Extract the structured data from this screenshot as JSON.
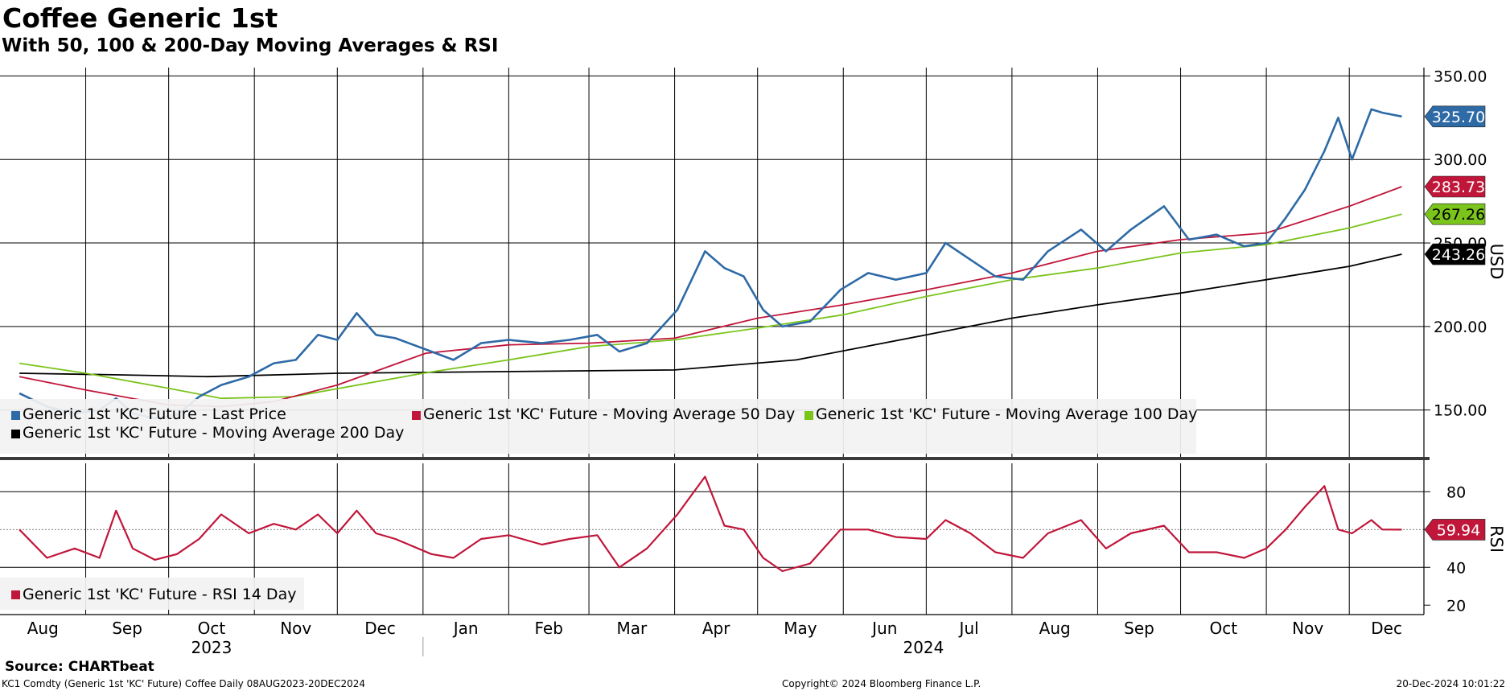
{
  "header": {
    "title": "Coffee Generic 1st",
    "subtitle": "With 50, 100 & 200-Day Moving Averages & RSI"
  },
  "footer": {
    "source": "Source: CHARTbeat",
    "security": "KC1 Comdty (Generic 1st 'KC' Future) Coffee  Daily 08AUG2023-20DEC2024",
    "copyright": "Copyright© 2024 Bloomberg Finance L.P.",
    "timestamp": "20-Dec-2024 10:01:22"
  },
  "colors": {
    "last_price": "#2e6aa6",
    "ma50": "#c0163a",
    "ma100": "#7ac41c",
    "ma200": "#000000",
    "rsi": "#c0163a"
  },
  "chart_data": [
    {
      "type": "line",
      "panel": "price",
      "title": "Coffee Generic 1st",
      "subtitle": "With 50, 100 & 200-Day Moving Averages & RSI",
      "ylabel": "USD",
      "ylim": [
        120,
        355
      ],
      "y_ticks": [
        "150.00",
        "200.00",
        "250.00",
        "300.00",
        "350.00"
      ],
      "x_range": [
        "2023-08-08",
        "2024-12-20"
      ],
      "x_tick_labels": [
        "Aug",
        "Sep",
        "Oct",
        "Nov",
        "Dec",
        "Jan",
        "Feb",
        "Mar",
        "Apr",
        "May",
        "Jun",
        "Jul",
        "Aug",
        "Sep",
        "Oct",
        "Nov",
        "Dec"
      ],
      "year_labels": [
        "2023",
        "2024"
      ],
      "grid": true,
      "legend_position": "bottom-left",
      "series": [
        {
          "name": "Generic 1st 'KC' Future - Last Price",
          "color": "#2e6aa6",
          "last_label": "325.70",
          "points": [
            [
              "2023-08-08",
              160
            ],
            [
              "2023-08-18",
              152
            ],
            [
              "2023-08-28",
              148
            ],
            [
              "2023-09-06",
              150
            ],
            [
              "2023-09-12",
              157
            ],
            [
              "2023-09-18",
              148
            ],
            [
              "2023-09-26",
              145
            ],
            [
              "2023-10-04",
              147
            ],
            [
              "2023-10-12",
              158
            ],
            [
              "2023-10-20",
              165
            ],
            [
              "2023-10-30",
              170
            ],
            [
              "2023-11-08",
              178
            ],
            [
              "2023-11-16",
              180
            ],
            [
              "2023-11-24",
              195
            ],
            [
              "2023-12-01",
              192
            ],
            [
              "2023-12-08",
              208
            ],
            [
              "2023-12-15",
              195
            ],
            [
              "2023-12-22",
              193
            ],
            [
              "2024-01-04",
              185
            ],
            [
              "2024-01-12",
              180
            ],
            [
              "2024-01-22",
              190
            ],
            [
              "2024-02-01",
              192
            ],
            [
              "2024-02-13",
              190
            ],
            [
              "2024-02-23",
              192
            ],
            [
              "2024-03-04",
              195
            ],
            [
              "2024-03-12",
              185
            ],
            [
              "2024-03-22",
              190
            ],
            [
              "2024-04-02",
              210
            ],
            [
              "2024-04-12",
              245
            ],
            [
              "2024-04-19",
              235
            ],
            [
              "2024-04-26",
              230
            ],
            [
              "2024-05-03",
              210
            ],
            [
              "2024-05-10",
              200
            ],
            [
              "2024-05-20",
              203
            ],
            [
              "2024-05-31",
              222
            ],
            [
              "2024-06-10",
              232
            ],
            [
              "2024-06-20",
              228
            ],
            [
              "2024-07-01",
              232
            ],
            [
              "2024-07-08",
              250
            ],
            [
              "2024-07-17",
              240
            ],
            [
              "2024-07-26",
              230
            ],
            [
              "2024-08-05",
              228
            ],
            [
              "2024-08-14",
              245
            ],
            [
              "2024-08-26",
              258
            ],
            [
              "2024-09-04",
              245
            ],
            [
              "2024-09-13",
              258
            ],
            [
              "2024-09-25",
              272
            ],
            [
              "2024-10-04",
              252
            ],
            [
              "2024-10-14",
              255
            ],
            [
              "2024-10-24",
              248
            ],
            [
              "2024-11-01",
              250
            ],
            [
              "2024-11-08",
              265
            ],
            [
              "2024-11-15",
              282
            ],
            [
              "2024-11-22",
              305
            ],
            [
              "2024-11-27",
              325
            ],
            [
              "2024-12-02",
              300
            ],
            [
              "2024-12-09",
              330
            ],
            [
              "2024-12-13",
              328
            ],
            [
              "2024-12-20",
              325.7
            ]
          ]
        },
        {
          "name": "Generic 1st 'KC' Future - Moving Average 50 Day",
          "color": "#c0163a",
          "last_label": "283.73",
          "points": [
            [
              "2023-08-08",
              170
            ],
            [
              "2023-09-01",
              162
            ],
            [
              "2023-10-01",
              153
            ],
            [
              "2023-10-20",
              152
            ],
            [
              "2023-11-08",
              155
            ],
            [
              "2023-12-01",
              165
            ],
            [
              "2024-01-02",
              184
            ],
            [
              "2024-02-01",
              189
            ],
            [
              "2024-03-01",
              190
            ],
            [
              "2024-04-01",
              193
            ],
            [
              "2024-05-01",
              205
            ],
            [
              "2024-06-01",
              213
            ],
            [
              "2024-07-01",
              222
            ],
            [
              "2024-08-01",
              232
            ],
            [
              "2024-09-01",
              245
            ],
            [
              "2024-10-01",
              252
            ],
            [
              "2024-11-01",
              256
            ],
            [
              "2024-12-01",
              272
            ],
            [
              "2024-12-20",
              283.73
            ]
          ]
        },
        {
          "name": "Generic 1st 'KC' Future - Moving Average 100 Day",
          "color": "#7ac41c",
          "last_label": "267.26",
          "points": [
            [
              "2023-08-08",
              178
            ],
            [
              "2023-09-01",
              172
            ],
            [
              "2023-10-01",
              163
            ],
            [
              "2023-10-20",
              157
            ],
            [
              "2023-11-15",
              158
            ],
            [
              "2024-01-01",
              172
            ],
            [
              "2024-02-01",
              180
            ],
            [
              "2024-03-01",
              188
            ],
            [
              "2024-04-01",
              192
            ],
            [
              "2024-05-01",
              199
            ],
            [
              "2024-06-01",
              207
            ],
            [
              "2024-07-01",
              218
            ],
            [
              "2024-08-01",
              228
            ],
            [
              "2024-09-01",
              235
            ],
            [
              "2024-10-01",
              244
            ],
            [
              "2024-11-01",
              249
            ],
            [
              "2024-12-01",
              259
            ],
            [
              "2024-12-20",
              267.26
            ]
          ]
        },
        {
          "name": "Generic 1st 'KC' Future - Moving Average 200 Day",
          "color": "#000000",
          "last_label": "243.26",
          "points": [
            [
              "2023-08-08",
              172
            ],
            [
              "2023-09-15",
              171
            ],
            [
              "2023-10-15",
              170
            ],
            [
              "2023-12-01",
              172
            ],
            [
              "2024-02-01",
              173
            ],
            [
              "2024-04-01",
              174
            ],
            [
              "2024-05-15",
              180
            ],
            [
              "2024-07-01",
              195
            ],
            [
              "2024-08-01",
              205
            ],
            [
              "2024-09-01",
              213
            ],
            [
              "2024-10-01",
              220
            ],
            [
              "2024-11-01",
              228
            ],
            [
              "2024-12-01",
              236
            ],
            [
              "2024-12-20",
              243.26
            ]
          ]
        }
      ]
    },
    {
      "type": "line",
      "panel": "rsi",
      "ylabel": "RSI",
      "ylim": [
        15,
        95
      ],
      "y_ticks": [
        "20",
        "40",
        "60",
        "80"
      ],
      "grid": true,
      "legend_position": "bottom-left",
      "series": [
        {
          "name": "Generic 1st 'KC' Future - RSI 14 Day",
          "color": "#c0163a",
          "last_label": "59.94",
          "points": [
            [
              "2023-08-08",
              60
            ],
            [
              "2023-08-18",
              45
            ],
            [
              "2023-08-28",
              50
            ],
            [
              "2023-09-06",
              45
            ],
            [
              "2023-09-12",
              70
            ],
            [
              "2023-09-18",
              50
            ],
            [
              "2023-09-26",
              44
            ],
            [
              "2023-10-04",
              47
            ],
            [
              "2023-10-12",
              55
            ],
            [
              "2023-10-20",
              68
            ],
            [
              "2023-10-30",
              58
            ],
            [
              "2023-11-08",
              63
            ],
            [
              "2023-11-16",
              60
            ],
            [
              "2023-11-24",
              68
            ],
            [
              "2023-12-01",
              58
            ],
            [
              "2023-12-08",
              70
            ],
            [
              "2023-12-15",
              58
            ],
            [
              "2023-12-22",
              55
            ],
            [
              "2024-01-04",
              47
            ],
            [
              "2024-01-12",
              45
            ],
            [
              "2024-01-22",
              55
            ],
            [
              "2024-02-01",
              57
            ],
            [
              "2024-02-13",
              52
            ],
            [
              "2024-02-23",
              55
            ],
            [
              "2024-03-04",
              57
            ],
            [
              "2024-03-12",
              40
            ],
            [
              "2024-03-22",
              50
            ],
            [
              "2024-04-02",
              68
            ],
            [
              "2024-04-12",
              88
            ],
            [
              "2024-04-19",
              62
            ],
            [
              "2024-04-26",
              60
            ],
            [
              "2024-05-03",
              45
            ],
            [
              "2024-05-10",
              38
            ],
            [
              "2024-05-20",
              42
            ],
            [
              "2024-05-31",
              60
            ],
            [
              "2024-06-10",
              60
            ],
            [
              "2024-06-20",
              56
            ],
            [
              "2024-07-01",
              55
            ],
            [
              "2024-07-08",
              65
            ],
            [
              "2024-07-17",
              58
            ],
            [
              "2024-07-26",
              48
            ],
            [
              "2024-08-05",
              45
            ],
            [
              "2024-08-14",
              58
            ],
            [
              "2024-08-26",
              65
            ],
            [
              "2024-09-04",
              50
            ],
            [
              "2024-09-13",
              58
            ],
            [
              "2024-09-25",
              62
            ],
            [
              "2024-10-04",
              48
            ],
            [
              "2024-10-14",
              48
            ],
            [
              "2024-10-24",
              45
            ],
            [
              "2024-11-01",
              50
            ],
            [
              "2024-11-08",
              60
            ],
            [
              "2024-11-15",
              72
            ],
            [
              "2024-11-22",
              83
            ],
            [
              "2024-11-27",
              60
            ],
            [
              "2024-12-02",
              58
            ],
            [
              "2024-12-09",
              65
            ],
            [
              "2024-12-13",
              60
            ],
            [
              "2024-12-20",
              59.94
            ]
          ]
        }
      ]
    }
  ]
}
